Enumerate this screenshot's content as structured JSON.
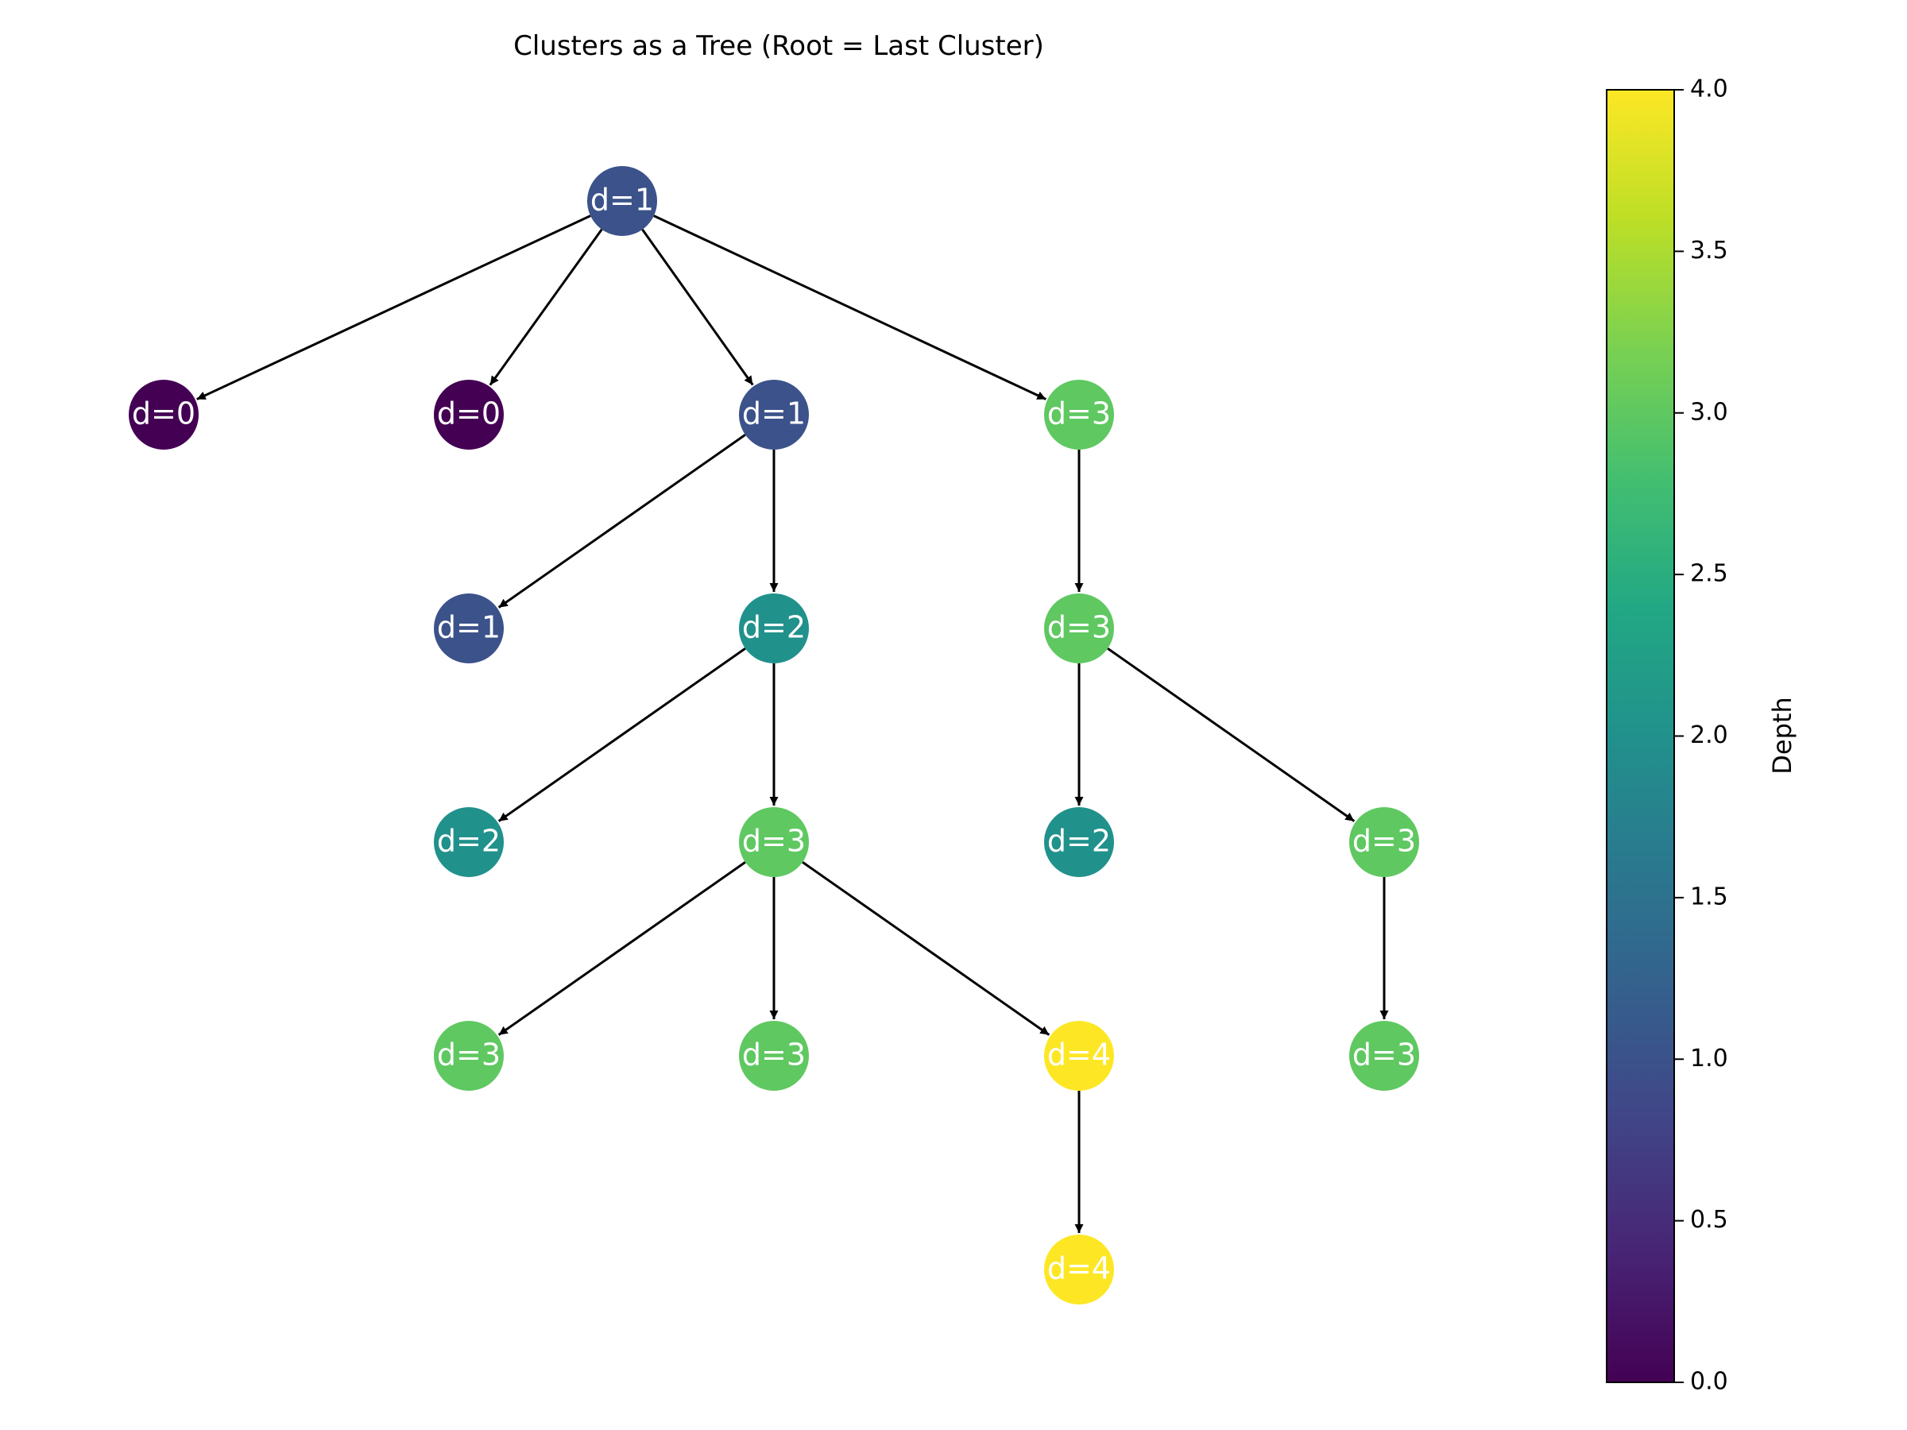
{
  "title": "Clusters as a Tree (Root = Last Cluster)",
  "colors": {
    "viridis": [
      "#440154",
      "#482475",
      "#414487",
      "#355f8d",
      "#2a788e",
      "#21918c",
      "#22a884",
      "#44bf70",
      "#7ad151",
      "#bddf26",
      "#fde725"
    ],
    "edge": "#000000",
    "label": "#ffffff"
  },
  "diagram": {
    "nodes": [
      {
        "id": "n0",
        "label": "d=1",
        "depth": 1
      },
      {
        "id": "n1",
        "label": "d=0",
        "depth": 0
      },
      {
        "id": "n2",
        "label": "d=0",
        "depth": 0
      },
      {
        "id": "n3",
        "label": "d=1",
        "depth": 1
      },
      {
        "id": "n4",
        "label": "d=3",
        "depth": 3
      },
      {
        "id": "n5",
        "label": "d=1",
        "depth": 1
      },
      {
        "id": "n6",
        "label": "d=2",
        "depth": 2
      },
      {
        "id": "n7",
        "label": "d=3",
        "depth": 3
      },
      {
        "id": "n8",
        "label": "d=2",
        "depth": 2
      },
      {
        "id": "n9",
        "label": "d=3",
        "depth": 3
      },
      {
        "id": "n10",
        "label": "d=2",
        "depth": 2
      },
      {
        "id": "n11",
        "label": "d=3",
        "depth": 3
      },
      {
        "id": "n12",
        "label": "d=3",
        "depth": 3
      },
      {
        "id": "n13",
        "label": "d=3",
        "depth": 3
      },
      {
        "id": "n14",
        "label": "d=4",
        "depth": 4
      },
      {
        "id": "n15",
        "label": "d=3",
        "depth": 3
      },
      {
        "id": "n16",
        "label": "d=4",
        "depth": 4
      }
    ],
    "edges": [
      [
        "n0",
        "n1"
      ],
      [
        "n0",
        "n2"
      ],
      [
        "n0",
        "n3"
      ],
      [
        "n0",
        "n4"
      ],
      [
        "n3",
        "n5"
      ],
      [
        "n3",
        "n6"
      ],
      [
        "n4",
        "n7"
      ],
      [
        "n6",
        "n8"
      ],
      [
        "n6",
        "n9"
      ],
      [
        "n7",
        "n10"
      ],
      [
        "n7",
        "n11"
      ],
      [
        "n9",
        "n12"
      ],
      [
        "n9",
        "n13"
      ],
      [
        "n9",
        "n14"
      ],
      [
        "n11",
        "n15"
      ],
      [
        "n14",
        "n16"
      ]
    ]
  },
  "colorbar": {
    "label": "Depth",
    "min": 0,
    "max": 4,
    "ticks": [
      "0.0",
      "0.5",
      "1.0",
      "1.5",
      "2.0",
      "2.5",
      "3.0",
      "3.5",
      "4.0"
    ]
  }
}
